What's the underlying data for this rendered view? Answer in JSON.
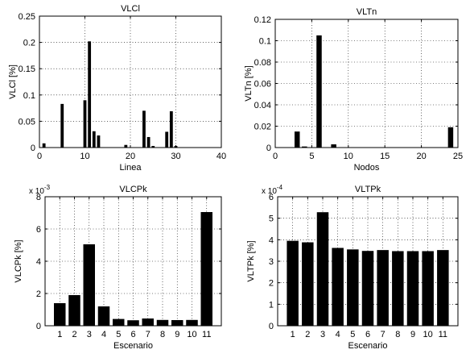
{
  "chart_data": [
    {
      "type": "bar",
      "title": "VLCl",
      "xlabel": "Linea",
      "ylabel": "VLCl [%]",
      "xlim": [
        0,
        40
      ],
      "ylim": [
        0,
        0.25
      ],
      "xticks": [
        "0",
        "10",
        "20",
        "30",
        "40"
      ],
      "yticks": [
        "0",
        "0.05",
        "0.1",
        "0.15",
        "0.2",
        "0.25"
      ],
      "grid": true,
      "x": [
        1,
        5,
        10,
        11,
        12,
        13,
        19,
        23,
        24,
        25,
        28,
        29,
        30
      ],
      "values": [
        0.008,
        0.083,
        0.09,
        0.202,
        0.031,
        0.023,
        0.005,
        0.07,
        0.02,
        0.003,
        0.03,
        0.069,
        0.003
      ]
    },
    {
      "type": "bar",
      "title": "VLTn",
      "xlabel": "Nodos",
      "ylabel": "VLTn [%]",
      "xlim": [
        0,
        25
      ],
      "ylim": [
        0,
        0.12
      ],
      "xticks": [
        "0",
        "5",
        "10",
        "15",
        "20",
        "25"
      ],
      "yticks": [
        "0",
        "0.02",
        "0.04",
        "0.06",
        "0.08",
        "0.1",
        "0.12"
      ],
      "grid": true,
      "x": [
        3,
        4,
        6,
        8,
        24
      ],
      "values": [
        0.015,
        0.001,
        0.105,
        0.003,
        0.019
      ]
    },
    {
      "type": "bar",
      "title": "VLCPk",
      "xlabel": "Escenario",
      "ylabel": "VLCPk [%]",
      "ylim": [
        0,
        8
      ],
      "yticks": [
        "0",
        "2",
        "4",
        "6",
        "8"
      ],
      "scale_label": "x 10",
      "scale_exponent": "-3",
      "grid": true,
      "categories": [
        "1",
        "2",
        "3",
        "4",
        "5",
        "6",
        "7",
        "8",
        "9",
        "10",
        "11"
      ],
      "values": [
        1.4,
        1.9,
        5.05,
        1.2,
        0.42,
        0.34,
        0.45,
        0.36,
        0.35,
        0.36,
        7.05
      ]
    },
    {
      "type": "bar",
      "title": "VLTPk",
      "xlabel": "Escenario",
      "ylabel": "VLTPk [%]",
      "ylim": [
        0,
        6
      ],
      "yticks": [
        "0",
        "1",
        "2",
        "3",
        "4",
        "5",
        "6"
      ],
      "scale_label": "x 10",
      "scale_exponent": "-4",
      "grid": true,
      "categories": [
        "1",
        "2",
        "3",
        "4",
        "5",
        "6",
        "7",
        "8",
        "9",
        "10",
        "11"
      ],
      "values": [
        3.95,
        3.88,
        5.28,
        3.62,
        3.55,
        3.48,
        3.52,
        3.47,
        3.47,
        3.47,
        3.52
      ]
    }
  ],
  "colors": {
    "bar": "#000000",
    "axes": "#000000",
    "grid": "#000000",
    "background": "#ffffff"
  }
}
